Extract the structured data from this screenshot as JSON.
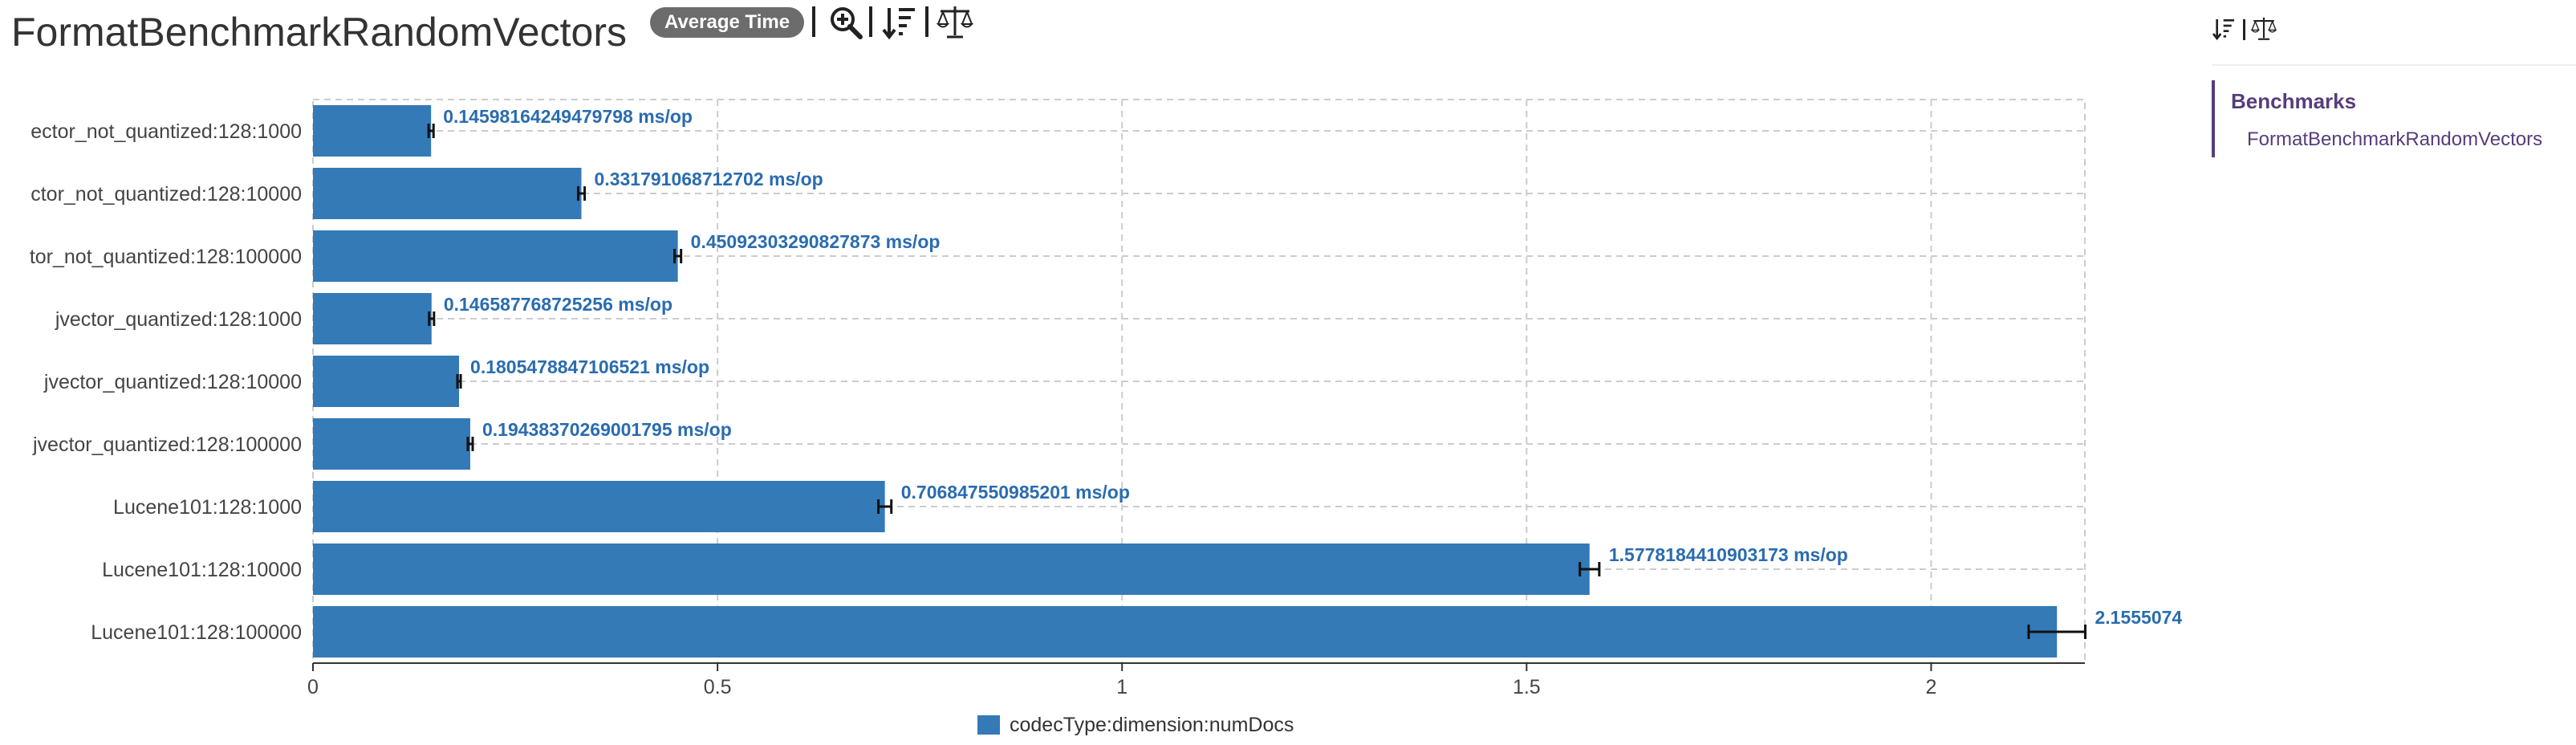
{
  "header": {
    "title": "FormatBenchmarkRandomVectors",
    "mode_badge": "Average Time",
    "toolbar_icons": [
      "zoom-in-icon",
      "sort-icon",
      "balance-scale-icon"
    ]
  },
  "sidebar": {
    "toolbar_icons": [
      "sort-icon",
      "balance-scale-icon"
    ],
    "heading": "Benchmarks",
    "items": [
      {
        "label": "FormatBenchmarkRandomVectors"
      }
    ]
  },
  "colors": {
    "bar": "#337ab7",
    "label": "#2a6cb0",
    "accent": "#563d7c",
    "grid": "#cccccc",
    "error_bar": "#111111"
  },
  "chart_data": {
    "type": "bar",
    "orientation": "horizontal",
    "unit": "ms/op",
    "categories": [
      "ector_not_quantized:128:1000",
      "ctor_not_quantized:128:10000",
      "tor_not_quantized:128:100000",
      "jvector_quantized:128:1000",
      "jvector_quantized:128:10000",
      "jvector_quantized:128:100000",
      "Lucene101:128:1000",
      "Lucene101:128:10000",
      "Lucene101:128:100000"
    ],
    "values": [
      0.14598164249479798,
      0.331791068712702,
      0.45092303290827873,
      0.146587768725256,
      0.1805478847106521,
      0.19438370269001795,
      0.706847550985201,
      1.5778184410903173,
      2.1555074
    ],
    "errors": [
      0.003,
      0.004,
      0.004,
      0.003,
      0.002,
      0.003,
      0.008,
      0.012,
      0.035
    ],
    "data_labels": [
      "0.14598164249479798 ms/op",
      "0.331791068712702 ms/op",
      "0.45092303290827873 ms/op",
      "0.146587768725256 ms/op",
      "0.1805478847106521 ms/op",
      "0.19438370269001795 ms/op",
      "0.706847550985201 ms/op",
      "1.5778184410903173 ms/op",
      "2.1555074"
    ],
    "xlim": [
      0,
      2.19
    ],
    "x_ticks": [
      0,
      0.5,
      1,
      1.5,
      2
    ],
    "x_tick_labels": [
      "0",
      "0.5",
      "1",
      "1.5",
      "2"
    ],
    "grid": true,
    "legend": {
      "position": "bottom",
      "entries": [
        "codecType:dimension:numDocs"
      ]
    }
  }
}
